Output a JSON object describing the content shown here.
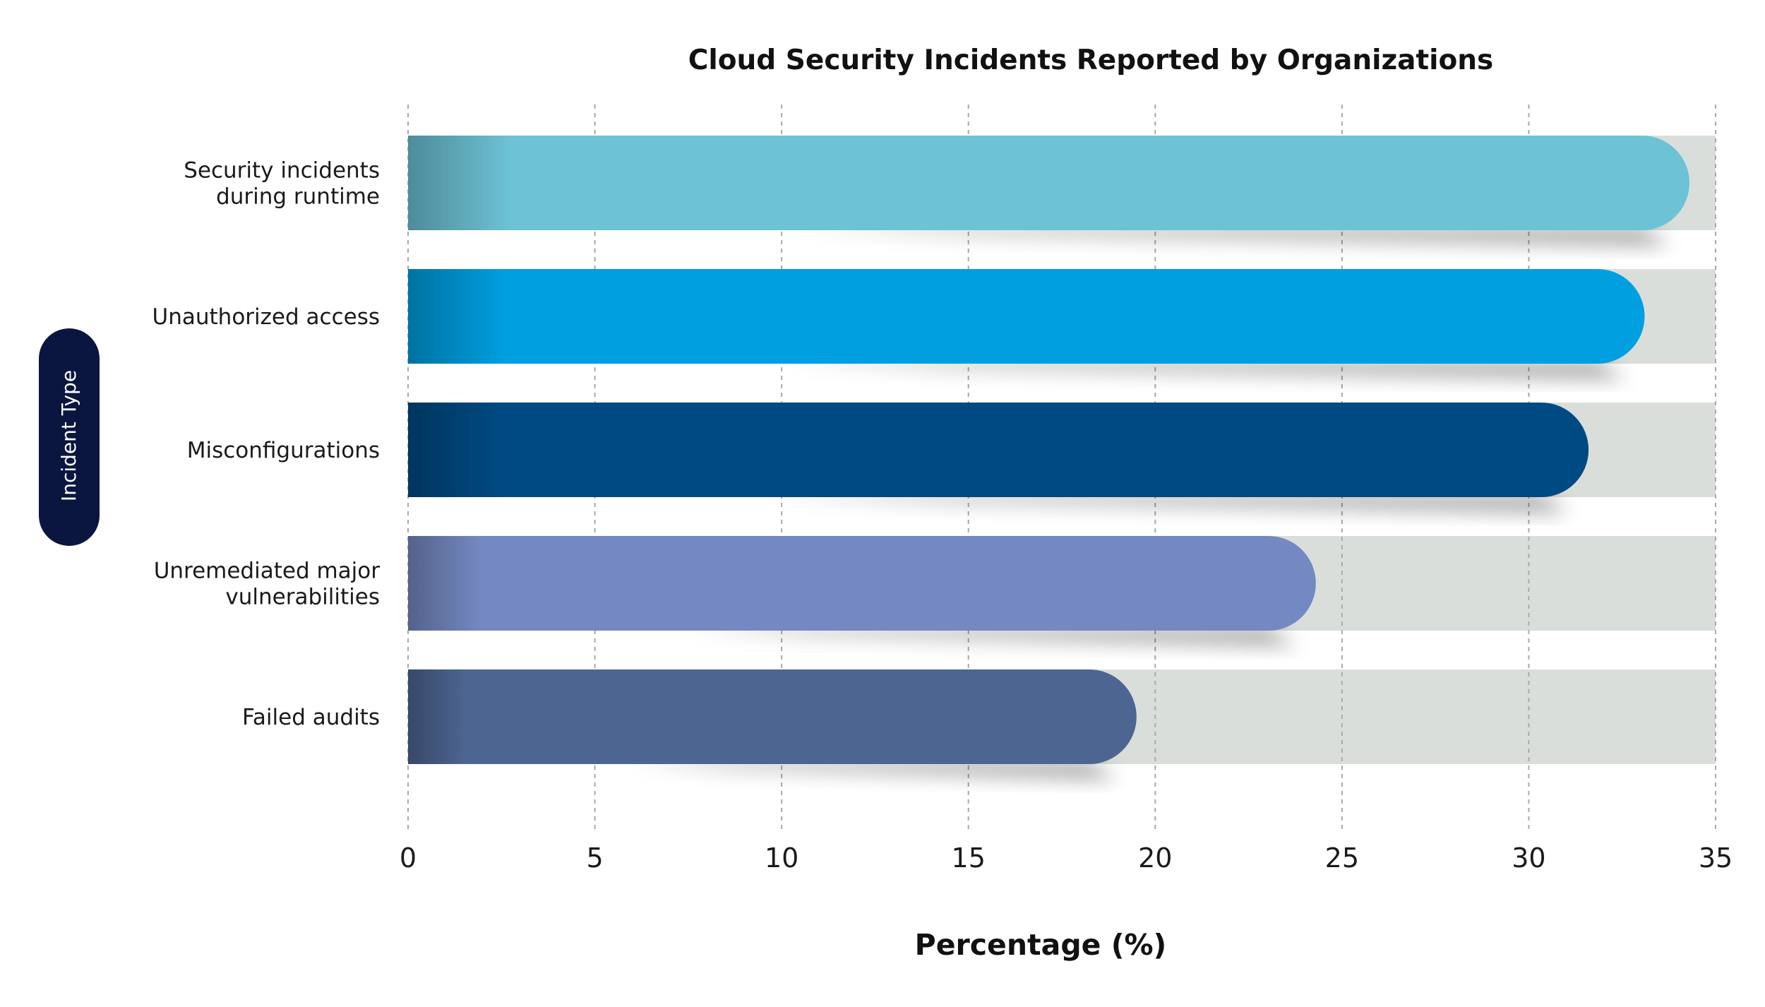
{
  "chart_data": {
    "type": "bar",
    "orientation": "horizontal",
    "title": "Cloud Security Incidents Reported by Organizations",
    "xlabel": "Percentage (%)",
    "ylabel": "Incident Type",
    "categories": [
      "Security incidents during runtime",
      "Unauthorized access",
      "Misconfigurations",
      "Unremediated major vulnerabilities",
      "Failed audits"
    ],
    "category_label_lines": [
      [
        "Security incidents",
        "during runtime"
      ],
      [
        "Unauthorized access"
      ],
      [
        "Misconfigurations"
      ],
      [
        "Unremediated major",
        "vulnerabilities"
      ],
      [
        "Failed audits"
      ]
    ],
    "values": [
      34.3,
      33.1,
      31.6,
      24.3,
      19.5
    ],
    "xlim": [
      0,
      35
    ],
    "xticks": [
      0,
      5,
      10,
      15,
      20,
      25,
      30,
      35
    ],
    "grid": true,
    "bar_colors": [
      "#6dc2d5",
      "#009fe0",
      "#004a83",
      "#7488c1",
      "#4d6591"
    ],
    "track_color": "#d9dedb",
    "ylabel_badge_color": "#0a1640"
  }
}
